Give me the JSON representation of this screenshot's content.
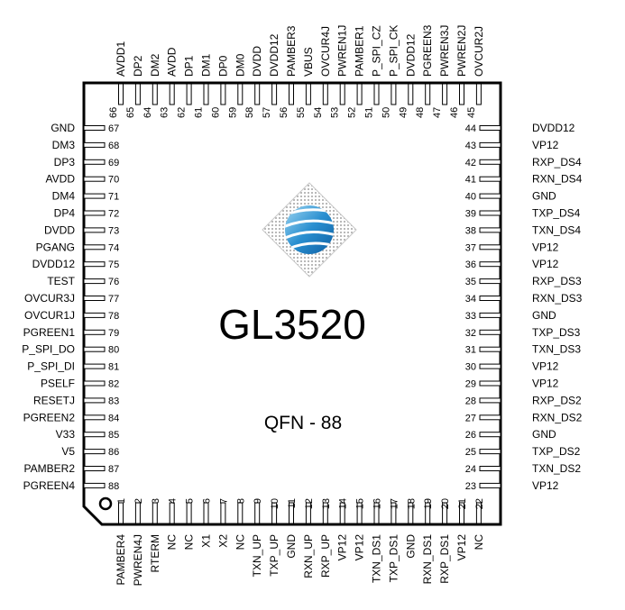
{
  "chip": {
    "name": "GL3520",
    "package": "QFN - 88"
  },
  "pins": {
    "top": [
      {
        "num": "66",
        "name": "AVDD1"
      },
      {
        "num": "65",
        "name": "DP2"
      },
      {
        "num": "64",
        "name": "DM2"
      },
      {
        "num": "63",
        "name": "AVDD"
      },
      {
        "num": "62",
        "name": "DP1"
      },
      {
        "num": "61",
        "name": "DM1"
      },
      {
        "num": "60",
        "name": "DP0"
      },
      {
        "num": "59",
        "name": "DM0"
      },
      {
        "num": "58",
        "name": "DVDD"
      },
      {
        "num": "57",
        "name": "DVDD12"
      },
      {
        "num": "56",
        "name": "PAMBER3"
      },
      {
        "num": "55",
        "name": "VBUS"
      },
      {
        "num": "54",
        "name": "OVCUR4J"
      },
      {
        "num": "53",
        "name": "PWREN1J"
      },
      {
        "num": "52",
        "name": "PAMBER1"
      },
      {
        "num": "51",
        "name": "P_SPI_CZ"
      },
      {
        "num": "50",
        "name": "P_SPI_CK"
      },
      {
        "num": "49",
        "name": "DVDD12"
      },
      {
        "num": "48",
        "name": "PGREEN3"
      },
      {
        "num": "47",
        "name": "PWREN3J"
      },
      {
        "num": "46",
        "name": "PWREN2J"
      },
      {
        "num": "45",
        "name": "OVCUR2J"
      }
    ],
    "left": [
      {
        "num": "67",
        "name": "GND"
      },
      {
        "num": "68",
        "name": "DM3"
      },
      {
        "num": "69",
        "name": "DP3"
      },
      {
        "num": "70",
        "name": "AVDD"
      },
      {
        "num": "71",
        "name": "DM4"
      },
      {
        "num": "72",
        "name": "DP4"
      },
      {
        "num": "73",
        "name": "DVDD"
      },
      {
        "num": "74",
        "name": "PGANG"
      },
      {
        "num": "75",
        "name": "DVDD12"
      },
      {
        "num": "76",
        "name": "TEST"
      },
      {
        "num": "77",
        "name": "OVCUR3J"
      },
      {
        "num": "78",
        "name": "OVCUR1J"
      },
      {
        "num": "79",
        "name": "PGREEN1"
      },
      {
        "num": "80",
        "name": "P_SPI_DO"
      },
      {
        "num": "81",
        "name": "P_SPI_DI"
      },
      {
        "num": "82",
        "name": "PSELF"
      },
      {
        "num": "83",
        "name": "RESETJ"
      },
      {
        "num": "84",
        "name": "PGREEN2"
      },
      {
        "num": "85",
        "name": "V33"
      },
      {
        "num": "86",
        "name": "V5"
      },
      {
        "num": "87",
        "name": "PAMBER2"
      },
      {
        "num": "88",
        "name": "PGREEN4"
      }
    ],
    "right": [
      {
        "num": "44",
        "name": "DVDD12"
      },
      {
        "num": "43",
        "name": "VP12"
      },
      {
        "num": "42",
        "name": "RXP_DS4"
      },
      {
        "num": "41",
        "name": "RXN_DS4"
      },
      {
        "num": "40",
        "name": "GND"
      },
      {
        "num": "39",
        "name": "TXP_DS4"
      },
      {
        "num": "38",
        "name": "TXN_DS4"
      },
      {
        "num": "37",
        "name": "VP12"
      },
      {
        "num": "36",
        "name": "VP12"
      },
      {
        "num": "35",
        "name": "RXP_DS3"
      },
      {
        "num": "34",
        "name": "RXN_DS3"
      },
      {
        "num": "33",
        "name": "GND"
      },
      {
        "num": "32",
        "name": "TXP_DS3"
      },
      {
        "num": "31",
        "name": "TXN_DS3"
      },
      {
        "num": "30",
        "name": "VP12"
      },
      {
        "num": "29",
        "name": "VP12"
      },
      {
        "num": "28",
        "name": "RXP_DS2"
      },
      {
        "num": "27",
        "name": "RXN_DS2"
      },
      {
        "num": "26",
        "name": "GND"
      },
      {
        "num": "25",
        "name": "TXP_DS2"
      },
      {
        "num": "24",
        "name": "TXN_DS2"
      },
      {
        "num": "23",
        "name": "VP12"
      }
    ],
    "bottom": [
      {
        "num": "1",
        "name": "PAMBER4"
      },
      {
        "num": "2",
        "name": "PWREN4J"
      },
      {
        "num": "3",
        "name": "RTERM"
      },
      {
        "num": "4",
        "name": "NC"
      },
      {
        "num": "5",
        "name": "NC"
      },
      {
        "num": "6",
        "name": "X1"
      },
      {
        "num": "7",
        "name": "X2"
      },
      {
        "num": "8",
        "name": "NC"
      },
      {
        "num": "9",
        "name": "TXN_UP"
      },
      {
        "num": "10",
        "name": "TXP_UP"
      },
      {
        "num": "11",
        "name": "GND"
      },
      {
        "num": "12",
        "name": "RXN_UP"
      },
      {
        "num": "13",
        "name": "RXP_UP"
      },
      {
        "num": "14",
        "name": "VP12"
      },
      {
        "num": "15",
        "name": "VP12"
      },
      {
        "num": "16",
        "name": "TXN_DS1"
      },
      {
        "num": "17",
        "name": "TXP_DS1"
      },
      {
        "num": "18",
        "name": "GND"
      },
      {
        "num": "19",
        "name": "RXN_DS1"
      },
      {
        "num": "20",
        "name": "RXP_DS1"
      },
      {
        "num": "21",
        "name": "VP12"
      },
      {
        "num": "22",
        "name": "NC"
      }
    ]
  }
}
